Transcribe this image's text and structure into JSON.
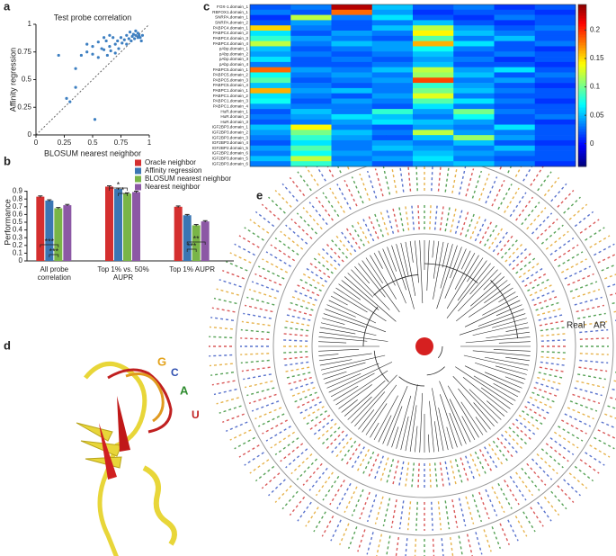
{
  "figure": {
    "panel_labels": [
      "a",
      "b",
      "c",
      "d",
      "e"
    ],
    "structure_labels": [
      "G",
      "C",
      "A",
      "U"
    ],
    "tree_labels": [
      "Real",
      "AR"
    ]
  },
  "chart_data": [
    {
      "type": "scatter",
      "title": "Test probe correlation",
      "xlabel": "BLOSUM nearest neighbor",
      "ylabel": "Affinity regression",
      "color": "#3d7fc1",
      "x": [
        0.27,
        0.3,
        0.35,
        0.4,
        0.45,
        0.5,
        0.52,
        0.55,
        0.58,
        0.6,
        0.62,
        0.63,
        0.65,
        0.66,
        0.68,
        0.7,
        0.7,
        0.72,
        0.73,
        0.75,
        0.76,
        0.78,
        0.8,
        0.8,
        0.82,
        0.83,
        0.84,
        0.85,
        0.86,
        0.87,
        0.88,
        0.88,
        0.9,
        0.9,
        0.91,
        0.92,
        0.93,
        0.94,
        0.5,
        0.6,
        0.55,
        0.45,
        0.2,
        0.35,
        0.65
      ],
      "y": [
        0.33,
        0.3,
        0.6,
        0.72,
        0.75,
        0.8,
        0.14,
        0.7,
        0.78,
        0.77,
        0.85,
        0.72,
        0.8,
        0.76,
        0.88,
        0.82,
        0.74,
        0.85,
        0.78,
        0.88,
        0.83,
        0.86,
        0.9,
        0.82,
        0.87,
        0.93,
        0.85,
        0.89,
        0.91,
        0.87,
        0.9,
        0.94,
        0.88,
        0.92,
        0.9,
        0.88,
        0.85,
        0.9,
        0.73,
        0.88,
        0.84,
        0.82,
        0.72,
        0.43,
        0.9
      ],
      "xlim": [
        0,
        1
      ],
      "ylim": [
        0,
        1
      ],
      "xticks": [
        0,
        0.25,
        0.5,
        0.75,
        1
      ],
      "yticks": [
        0,
        0.25,
        0.5,
        0.75,
        1
      ]
    },
    {
      "type": "bar",
      "ylabel": "Performance",
      "categories": [
        "All probe correlation",
        "Top 1% vs. 50% AUPR",
        "Top 1% AUPR"
      ],
      "series": [
        {
          "name": "Oracle neighbor",
          "color": "#d42f2f",
          "values": [
            0.83,
            0.96,
            0.7
          ],
          "errors": [
            0.01,
            0.01,
            0.01
          ]
        },
        {
          "name": "Affinity regression",
          "color": "#3b76b3",
          "values": [
            0.78,
            0.93,
            0.59
          ],
          "errors": [
            0.01,
            0.01,
            0.01
          ]
        },
        {
          "name": "BLOSUM nearest neighbor",
          "color": "#79b547",
          "values": [
            0.68,
            0.87,
            0.46
          ],
          "errors": [
            0.01,
            0.01,
            0.01
          ]
        },
        {
          "name": "Nearest neighbor",
          "color": "#8c58a5",
          "values": [
            0.72,
            0.89,
            0.51
          ],
          "errors": [
            0.01,
            0.01,
            0.01
          ]
        }
      ],
      "significance": [
        "***",
        "***",
        "*",
        "*",
        "**",
        "***"
      ],
      "ylim": [
        0,
        1
      ],
      "yticks": [
        0,
        0.1,
        0.2,
        0.3,
        0.4,
        0.5,
        0.6,
        0.7,
        0.8,
        0.9
      ]
    },
    {
      "type": "heatmap",
      "rows": [
        "FOX-1.domain_1",
        "RBFOX1.domain_1",
        "SNRPA.domain_1",
        "SNRPA.domain_2",
        "PABPC4.domain_1",
        "PABPC4.domain_2",
        "PABPC4.domain_3",
        "PABPC4.domain_4",
        "pAbp.domain_1",
        "pAbp.domain_2",
        "pAbp.domain_3",
        "pAbp.domain_4",
        "PABPC5.domain_1",
        "PABPC5.domain_2",
        "PABPC5.domain_3",
        "PABPC5.domain_4",
        "PABPC1.domain_1",
        "PABPC1.domain_2",
        "PABPC1.domain_3",
        "PABPC1.domain_4",
        "HuR.domain_1",
        "HuR.domain_2",
        "HuR.domain_3",
        "IGF2BP3.domain_1",
        "IGF2BP3.domain_2",
        "IGF2BP3.domain_3",
        "IGF2BP3.domain_4",
        "IGF2BP2.domain_5",
        "IGF2BP2.domain_6",
        "IGF2BP3.domain_5",
        "IGF2BP3.domain_6"
      ],
      "values": [
        [
          0.02,
          0.03,
          0.23,
          0.05,
          0.02,
          0.03,
          0.01,
          0.02
        ],
        [
          0.03,
          0.02,
          0.18,
          0.04,
          0.01,
          0.02,
          0.02,
          0.01
        ],
        [
          0.01,
          0.12,
          0.03,
          0.06,
          0.02,
          0.01,
          0.03,
          0.02
        ],
        [
          0.02,
          0.04,
          0.02,
          0.03,
          0.05,
          0.02,
          0.01,
          0.02
        ],
        [
          0.15,
          0.03,
          0.02,
          0.05,
          0.12,
          0.04,
          0.02,
          0.03
        ],
        [
          0.06,
          0.02,
          0.04,
          0.03,
          0.14,
          0.05,
          0.03,
          0.02
        ],
        [
          0.08,
          0.04,
          0.03,
          0.02,
          0.09,
          0.03,
          0.05,
          0.02
        ],
        [
          0.12,
          0.03,
          0.05,
          0.04,
          0.16,
          0.06,
          0.02,
          0.03
        ],
        [
          0.05,
          0.02,
          0.03,
          0.04,
          0.07,
          0.03,
          0.02,
          0.01
        ],
        [
          0.04,
          0.03,
          0.02,
          0.03,
          0.05,
          0.02,
          0.03,
          0.02
        ],
        [
          0.06,
          0.02,
          0.03,
          0.02,
          0.04,
          0.03,
          0.01,
          0.02
        ],
        [
          0.03,
          0.02,
          0.02,
          0.03,
          0.05,
          0.02,
          0.02,
          0.01
        ],
        [
          0.18,
          0.04,
          0.03,
          0.05,
          0.12,
          0.04,
          0.06,
          0.02
        ],
        [
          0.07,
          0.03,
          0.04,
          0.03,
          0.11,
          0.05,
          0.02,
          0.03
        ],
        [
          0.09,
          0.02,
          0.03,
          0.04,
          0.19,
          0.03,
          0.04,
          0.02
        ],
        [
          0.05,
          0.03,
          0.02,
          0.03,
          0.08,
          0.04,
          0.02,
          0.01
        ],
        [
          0.16,
          0.04,
          0.05,
          0.03,
          0.1,
          0.05,
          0.03,
          0.02
        ],
        [
          0.06,
          0.03,
          0.02,
          0.04,
          0.13,
          0.03,
          0.02,
          0.02
        ],
        [
          0.07,
          0.02,
          0.04,
          0.03,
          0.09,
          0.06,
          0.03,
          0.01
        ],
        [
          0.04,
          0.03,
          0.03,
          0.02,
          0.06,
          0.03,
          0.02,
          0.02
        ],
        [
          0.02,
          0.05,
          0.03,
          0.08,
          0.04,
          0.1,
          0.03,
          0.02
        ],
        [
          0.03,
          0.04,
          0.06,
          0.05,
          0.03,
          0.07,
          0.02,
          0.03
        ],
        [
          0.02,
          0.03,
          0.04,
          0.06,
          0.05,
          0.04,
          0.02,
          0.01
        ],
        [
          0.05,
          0.14,
          0.03,
          0.02,
          0.04,
          0.03,
          0.06,
          0.02
        ],
        [
          0.04,
          0.1,
          0.05,
          0.03,
          0.12,
          0.04,
          0.03,
          0.02
        ],
        [
          0.03,
          0.08,
          0.04,
          0.02,
          0.05,
          0.11,
          0.04,
          0.02
        ],
        [
          0.02,
          0.06,
          0.03,
          0.04,
          0.03,
          0.05,
          0.02,
          0.01
        ],
        [
          0.04,
          0.09,
          0.03,
          0.05,
          0.04,
          0.03,
          0.05,
          0.02
        ],
        [
          0.03,
          0.07,
          0.04,
          0.03,
          0.05,
          0.04,
          0.03,
          0.02
        ],
        [
          0.05,
          0.12,
          0.03,
          0.04,
          0.06,
          0.03,
          0.02,
          0.02
        ],
        [
          0.03,
          0.08,
          0.04,
          0.02,
          0.04,
          0.05,
          0.03,
          0.01
        ]
      ],
      "zlim": [
        -0.04,
        0.245
      ],
      "zticks": [
        0,
        0.05,
        0.1,
        0.15,
        0.2
      ]
    }
  ]
}
